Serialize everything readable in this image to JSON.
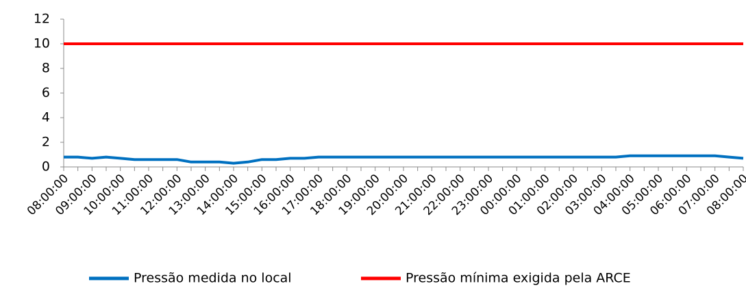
{
  "chart_data": {
    "type": "line",
    "categories": [
      "08:00:00",
      null,
      "09:00:00",
      null,
      "10:00:00",
      null,
      "11:00:00",
      null,
      "12:00:00",
      null,
      "13:00:00",
      null,
      "14:00:00",
      null,
      "15:00:00",
      null,
      "16:00:00",
      null,
      "17:00:00",
      null,
      "18:00:00",
      null,
      "19:00:00",
      null,
      "20:00:00",
      null,
      "21:00:00",
      null,
      "22:00:00",
      null,
      "23:00:00",
      null,
      "00:00:00",
      null,
      "01:00:00",
      null,
      "02:00:00",
      null,
      "03:00:00",
      null,
      "04:00:00",
      null,
      "05:00:00",
      null,
      "06:00:00",
      null,
      "07:00:00",
      null,
      "08:00:00"
    ],
    "series": [
      {
        "name": "Pressão medida no local",
        "color": "#0070c0",
        "values": [
          0.8,
          0.8,
          0.7,
          0.8,
          0.7,
          0.6,
          0.6,
          0.6,
          0.6,
          0.4,
          0.4,
          0.4,
          0.3,
          0.4,
          0.6,
          0.6,
          0.7,
          0.7,
          0.8,
          0.8,
          0.8,
          0.8,
          0.8,
          0.8,
          0.8,
          0.8,
          0.8,
          0.8,
          0.8,
          0.8,
          0.8,
          0.8,
          0.8,
          0.8,
          0.8,
          0.8,
          0.8,
          0.8,
          0.8,
          0.8,
          0.9,
          0.9,
          0.9,
          0.9,
          0.9,
          0.9,
          0.9,
          0.8,
          0.7
        ]
      },
      {
        "name": "Pressão mínima exigida pela ARCE",
        "color": "#ff0000",
        "values": [
          10,
          10,
          10,
          10,
          10,
          10,
          10,
          10,
          10,
          10,
          10,
          10,
          10,
          10,
          10,
          10,
          10,
          10,
          10,
          10,
          10,
          10,
          10,
          10,
          10,
          10,
          10,
          10,
          10,
          10,
          10,
          10,
          10,
          10,
          10,
          10,
          10,
          10,
          10,
          10,
          10,
          10,
          10,
          10,
          10,
          10,
          10,
          10,
          10
        ]
      }
    ],
    "ylim": [
      0,
      12
    ],
    "yticks": [
      0,
      2,
      4,
      6,
      8,
      10,
      12
    ],
    "legend": "bottom"
  }
}
